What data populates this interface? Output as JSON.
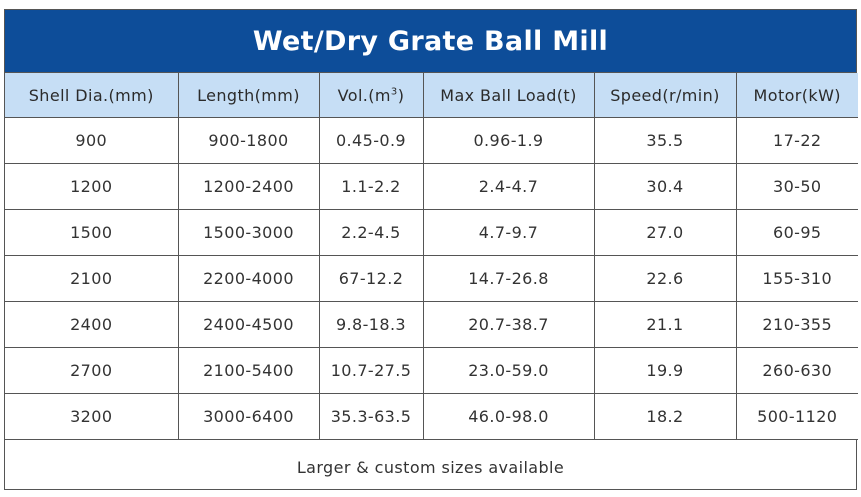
{
  "title": "Wet/Dry Grate Ball Mill",
  "headers": {
    "shell": "Shell Dia.(mm)",
    "length": "Length(mm)",
    "vol_prefix": "Vol.(m",
    "vol_sup": "3",
    "vol_suffix": ")",
    "load": "Max Ball Load(t)",
    "speed": "Speed(r/min)",
    "motor": "Motor(kW)"
  },
  "rows": [
    {
      "shell": "900",
      "length": "900-1800",
      "vol": "0.45-0.9",
      "load": "0.96-1.9",
      "speed": "35.5",
      "motor": "17-22"
    },
    {
      "shell": "1200",
      "length": "1200-2400",
      "vol": "1.1-2.2",
      "load": "2.4-4.7",
      "speed": "30.4",
      "motor": "30-50"
    },
    {
      "shell": "1500",
      "length": "1500-3000",
      "vol": "2.2-4.5",
      "load": "4.7-9.7",
      "speed": "27.0",
      "motor": "60-95"
    },
    {
      "shell": "2100",
      "length": "2200-4000",
      "vol": "67-12.2",
      "load": "14.7-26.8",
      "speed": "22.6",
      "motor": "155-310"
    },
    {
      "shell": "2400",
      "length": "2400-4500",
      "vol": "9.8-18.3",
      "load": "20.7-38.7",
      "speed": "21.1",
      "motor": "210-355"
    },
    {
      "shell": "2700",
      "length": "2100-5400",
      "vol": "10.7-27.5",
      "load": "23.0-59.0",
      "speed": "19.9",
      "motor": "260-630"
    },
    {
      "shell": "3200",
      "length": "3000-6400",
      "vol": "35.3-63.5",
      "load": "46.0-98.0",
      "speed": "18.2",
      "motor": "500-1120"
    }
  ],
  "footer": "Larger & custom sizes available",
  "colors": {
    "title_bg": "#0d4d99",
    "header_bg": "#c6def5",
    "border": "#555555"
  }
}
